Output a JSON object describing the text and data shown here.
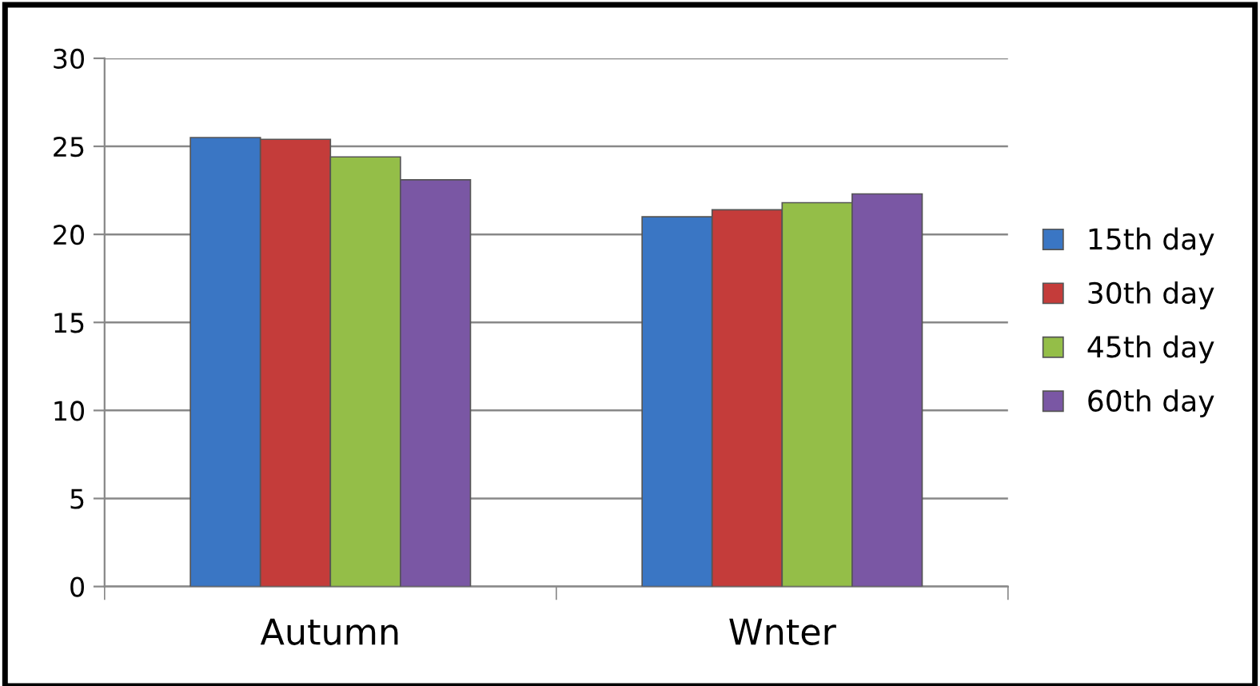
{
  "chart_data": {
    "type": "bar",
    "categories": [
      "Autumn",
      "Wnter"
    ],
    "series": [
      {
        "name": "15th day",
        "color": "#3a76c4",
        "values": [
          25.5,
          21.0
        ]
      },
      {
        "name": "30th day",
        "color": "#c43c3a",
        "values": [
          25.4,
          21.4
        ]
      },
      {
        "name": "45th day",
        "color": "#94be48",
        "values": [
          24.4,
          21.8
        ]
      },
      {
        "name": "60th day",
        "color": "#7a57a4",
        "values": [
          23.1,
          22.3
        ]
      }
    ],
    "ylim": [
      0,
      30
    ],
    "yticks": [
      0,
      5,
      10,
      15,
      20,
      25,
      30
    ],
    "grid": "y",
    "legend": "right"
  }
}
